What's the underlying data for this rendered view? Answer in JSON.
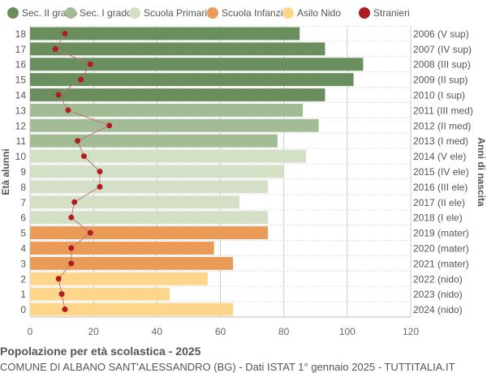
{
  "chart_data": {
    "type": "bar",
    "orientation": "horizontal",
    "title": "Popolazione per età scolastica - 2025",
    "subtitle": "COMUNE DI ALBANO SANT'ALESSANDRO (BG) - Dati ISTAT 1° gennaio 2025 - TUTTITALIA.IT",
    "ylabel": "Età alunni",
    "ylabel_right": "Anni di nascita",
    "xlim": [
      0,
      120
    ],
    "xticks": [
      0,
      20,
      40,
      60,
      80,
      100,
      120
    ],
    "grid": true,
    "legend_position": "top",
    "legend": [
      {
        "name": "Sec. II grado",
        "color": "#6b8e5e"
      },
      {
        "name": "Sec. I grado",
        "color": "#a2bc96"
      },
      {
        "name": "Scuola Primaria",
        "color": "#d3e0c6"
      },
      {
        "name": "Scuola Infanzia",
        "color": "#e99b57"
      },
      {
        "name": "Asilo Nido",
        "color": "#fdd68c"
      },
      {
        "name": "Stranieri",
        "color": "#b01c22"
      }
    ],
    "categories": [
      "18",
      "17",
      "16",
      "15",
      "14",
      "13",
      "12",
      "11",
      "10",
      "9",
      "8",
      "7",
      "6",
      "5",
      "4",
      "3",
      "2",
      "1",
      "0"
    ],
    "birth_years": [
      "2006 (V sup)",
      "2007 (IV sup)",
      "2008 (III sup)",
      "2009 (II sup)",
      "2010 (I sup)",
      "2011 (III med)",
      "2012 (II med)",
      "2013 (I med)",
      "2014 (V ele)",
      "2015 (IV ele)",
      "2016 (III ele)",
      "2017 (II ele)",
      "2018 (I ele)",
      "2019 (mater)",
      "2020 (mater)",
      "2021 (mater)",
      "2022 (nido)",
      "2023 (nido)",
      "2024 (nido)"
    ],
    "groups": [
      0,
      0,
      0,
      0,
      0,
      1,
      1,
      1,
      2,
      2,
      2,
      2,
      2,
      3,
      3,
      3,
      4,
      4,
      4
    ],
    "values": [
      85,
      93,
      105,
      102,
      93,
      86,
      91,
      78,
      87,
      80,
      75,
      66,
      75,
      75,
      58,
      64,
      56,
      44,
      64
    ],
    "stranieri": [
      11,
      8,
      19,
      16,
      9,
      12,
      25,
      15,
      17,
      22,
      22,
      14,
      13,
      19,
      13,
      13,
      9,
      10,
      11
    ]
  }
}
